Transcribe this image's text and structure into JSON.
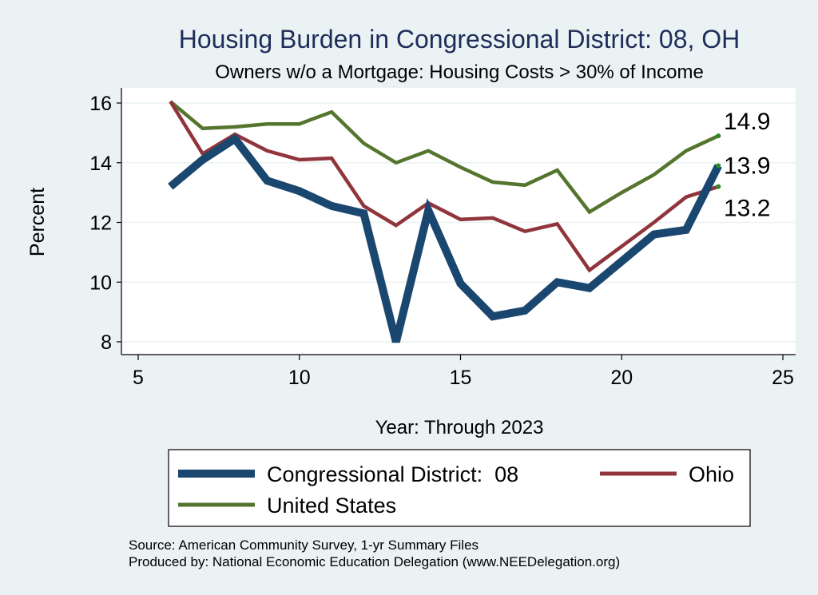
{
  "chart_data": {
    "type": "line",
    "title": "Housing Burden in Congressional District:  08, OH",
    "subtitle": "Owners w/o a Mortgage: Housing Costs > 30% of Income",
    "xlabel": "Year: Through 2023",
    "ylabel": "Percent",
    "xlim": [
      5,
      25
    ],
    "ylim": [
      8,
      16
    ],
    "xticks": [
      5,
      10,
      15,
      20,
      25
    ],
    "yticks": [
      8,
      10,
      12,
      14,
      16
    ],
    "grid": true,
    "legend_position": "bottom",
    "x": [
      6,
      7,
      8,
      9,
      10,
      11,
      12,
      13,
      14,
      15,
      16,
      17,
      18,
      19,
      20,
      21,
      22,
      23
    ],
    "series": [
      {
        "name": "Congressional District:  08",
        "color": "#1a476f",
        "values": [
          13.2,
          14.1,
          14.8,
          13.4,
          13.05,
          12.55,
          12.3,
          8.0,
          12.4,
          9.95,
          8.85,
          9.05,
          10.0,
          9.8,
          10.7,
          11.6,
          11.75,
          13.9
        ],
        "end_label": "13.9"
      },
      {
        "name": "Ohio",
        "color": "#90353b",
        "values": [
          16.05,
          14.3,
          14.95,
          14.4,
          14.1,
          14.15,
          12.55,
          11.9,
          12.65,
          12.1,
          12.15,
          11.7,
          11.95,
          10.4,
          11.2,
          12.0,
          12.85,
          13.2
        ],
        "end_label": "13.2"
      },
      {
        "name": "United States",
        "color": "#55752f",
        "values": [
          16.05,
          15.15,
          15.2,
          15.3,
          15.3,
          15.7,
          14.65,
          14.0,
          14.4,
          13.85,
          13.35,
          13.25,
          13.75,
          12.35,
          13.0,
          13.6,
          14.4,
          14.9
        ],
        "end_label": "14.9"
      }
    ],
    "end_marker_color": "#2e8b24"
  },
  "footer": {
    "source": "Source: American Community Survey, 1-yr Summary Files",
    "produced_by": "Produced by: National Economic Education Delegation (www.NEEDelegation.org)"
  },
  "colors": {
    "background": "#eaf2f3",
    "plot_background": "#ffffff",
    "grid": "#eaf2f3",
    "title": "#1e2d5a"
  }
}
